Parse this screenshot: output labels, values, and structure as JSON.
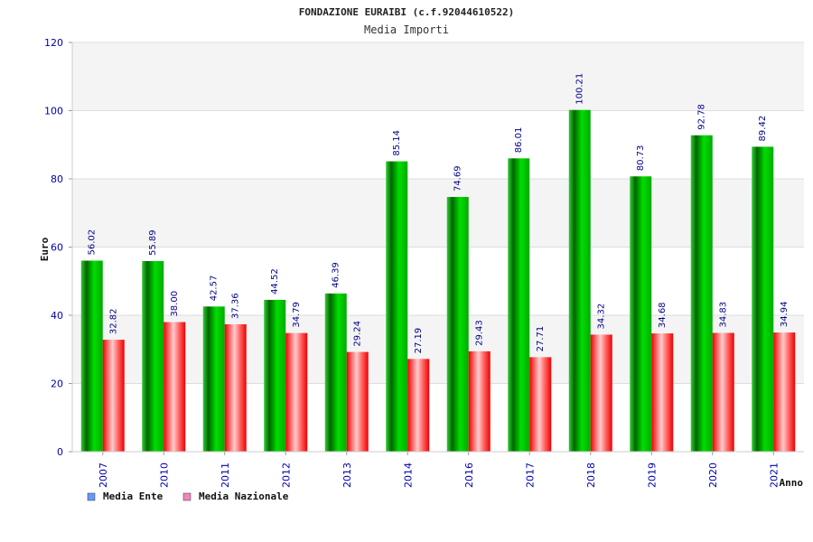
{
  "chart_data": {
    "type": "bar",
    "title": "FONDAZIONE EURAIBI (c.f.92044610522)",
    "subtitle": "Media Importi",
    "xlabel": "Anno",
    "ylabel": "Euro",
    "ylim": [
      0,
      120
    ],
    "yticks": [
      0,
      20,
      40,
      60,
      80,
      100,
      120
    ],
    "grid": true,
    "legend_position": "bottom-left",
    "categories": [
      "2007",
      "2010",
      "2011",
      "2012",
      "2013",
      "2014",
      "2016",
      "2017",
      "2018",
      "2019",
      "2020",
      "2021"
    ],
    "series": [
      {
        "name": "Media Ente",
        "color": "#00c000",
        "legend_color": "#6699ff",
        "values": [
          56.02,
          55.89,
          42.57,
          44.52,
          46.39,
          85.14,
          74.69,
          86.01,
          100.21,
          80.73,
          92.78,
          89.42
        ],
        "labels": [
          "56.02",
          "55.89",
          "42.57",
          "44.52",
          "46.39",
          "85.14",
          "74.69",
          "86.01",
          "100.21",
          "80.73",
          "92.78",
          "89.42"
        ]
      },
      {
        "name": "Media Nazionale",
        "color": "#ff0000",
        "legend_color": "#ee88bb",
        "values": [
          32.82,
          38.0,
          37.36,
          34.79,
          29.24,
          27.19,
          29.43,
          27.71,
          34.32,
          34.68,
          34.83,
          34.94
        ],
        "labels": [
          "32.82",
          "38.00",
          "37.36",
          "34.79",
          "29.24",
          "27.19",
          "29.43",
          "27.71",
          "34.32",
          "34.68",
          "34.83",
          "34.94"
        ]
      }
    ]
  }
}
